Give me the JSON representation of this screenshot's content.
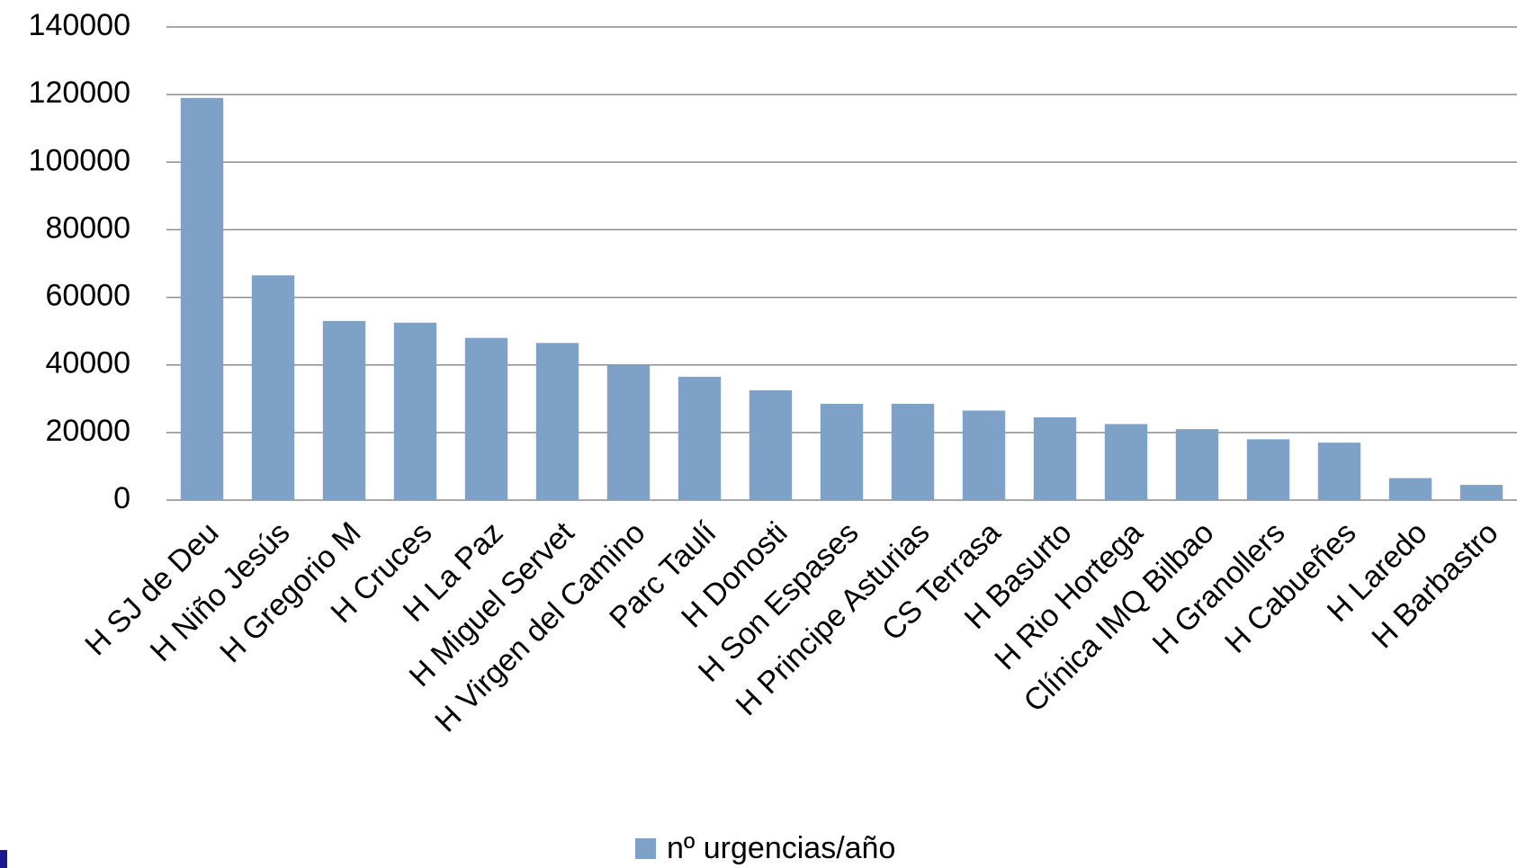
{
  "chart_data": {
    "type": "bar",
    "categories": [
      "H SJ de Deu",
      "H Niño Jesús",
      "H Gregorio M",
      "H Cruces",
      "H La Paz",
      "H Miguel Servet",
      "H Virgen del Camino",
      "Parc Taulí",
      "H Donosti",
      "H Son Espases",
      "H Principe Asturias",
      "CS Terrasa",
      "H Basurto",
      "H Rio Hortega",
      "Clínica IMQ Bilbao",
      "H Granollers",
      "H Cabueñes",
      "H Laredo",
      "H Barbastro"
    ],
    "series": [
      {
        "name": "nº urgencias/año",
        "color": "#7ea1c7",
        "values": [
          119000,
          66500,
          53000,
          52500,
          48000,
          46500,
          40000,
          36500,
          32500,
          28500,
          28500,
          26500,
          24500,
          22500,
          21000,
          18000,
          17000,
          6500,
          4500
        ]
      }
    ],
    "ylim": [
      0,
      140000
    ],
    "yticks": [
      0,
      20000,
      40000,
      60000,
      80000,
      100000,
      120000,
      140000
    ],
    "grid": true,
    "legend": "bottom"
  }
}
